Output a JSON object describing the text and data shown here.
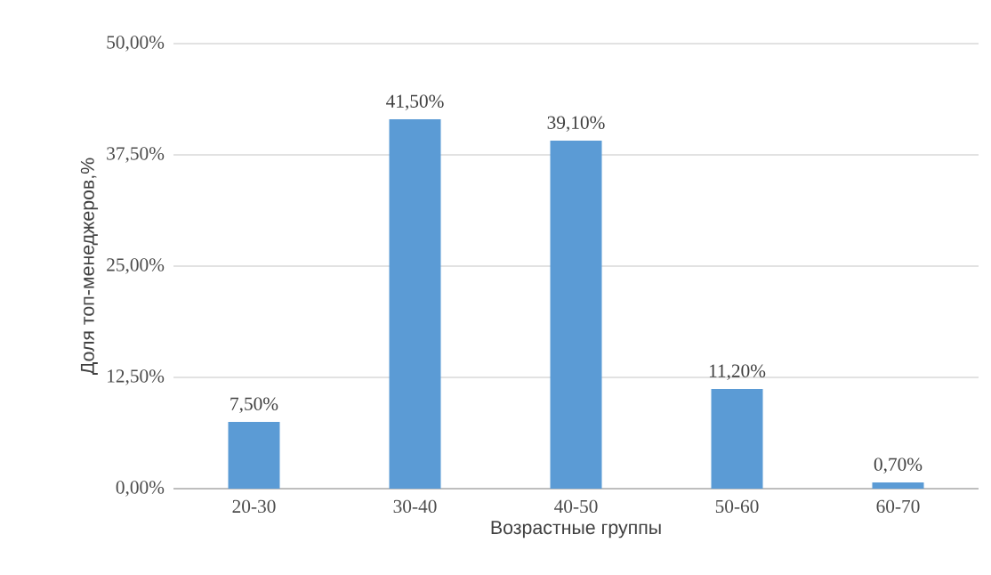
{
  "chart_data": {
    "type": "bar",
    "xlabel": "Возрастные группы",
    "ylabel": "Доля топ-менеджеров,%",
    "categories": [
      "20-30",
      "30-40",
      "40-50",
      "50-60",
      "60-70"
    ],
    "values": [
      7.5,
      41.5,
      39.1,
      11.2,
      0.7
    ],
    "value_labels": [
      "7,50%",
      "41,50%",
      "39,10%",
      "11,20%",
      "0,70%"
    ],
    "color": "#5b9bd5",
    "ylim": [
      0,
      50
    ],
    "yticks": [
      {
        "value": 0,
        "label": "0,00%"
      },
      {
        "value": 12.5,
        "label": "12,50%"
      },
      {
        "value": 25,
        "label": "25,00%"
      },
      {
        "value": 37.5,
        "label": "37,50%"
      },
      {
        "value": 50,
        "label": "50,00%"
      }
    ],
    "grid": "y"
  }
}
